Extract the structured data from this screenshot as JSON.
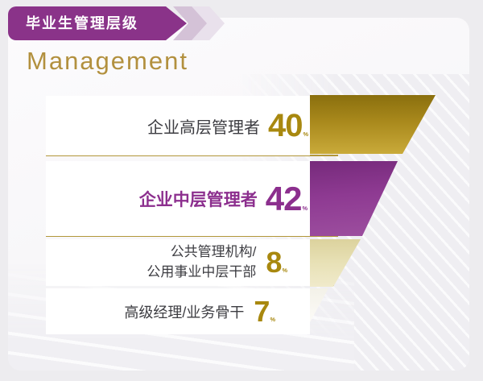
{
  "banner": {
    "label": "毕业生管理层级"
  },
  "title": {
    "en": "Management"
  },
  "rows": [
    {
      "label": "企业高层管理者",
      "value": "40",
      "unit": "%"
    },
    {
      "label": "企业中层管理者",
      "value": "42",
      "unit": "%"
    },
    {
      "label": "公共管理机构/",
      "label2": "公用事业中层干部",
      "value": "8",
      "unit": "%"
    },
    {
      "label": "高级经理/业务骨干",
      "value": "7",
      "unit": "%"
    }
  ],
  "colors": {
    "banner_purple": "#8a3389",
    "title_gold": "#b2903e",
    "accent_gold": "#a8880f",
    "accent_purple": "#8c2f8e",
    "text_dark": "#3d3d42",
    "divider_gold": "#b2973a"
  },
  "chart_data": {
    "type": "bar",
    "variant": "horizontal-funnel",
    "title": "毕业生管理层级",
    "subtitle": "Management",
    "categories": [
      "企业高层管理者",
      "企业中层管理者",
      "公共管理机构/公用事业中层干部",
      "高级经理/业务骨干"
    ],
    "values": [
      40,
      42,
      8,
      7
    ],
    "unit": "%",
    "bar_colors": [
      "#a9891c",
      "#8e3a92",
      "#e8e1b6",
      "#f8f6ef"
    ],
    "grid": false,
    "legend_position": "none"
  }
}
